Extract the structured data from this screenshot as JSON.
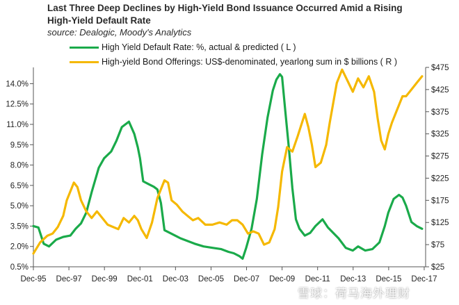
{
  "chart_data": {
    "type": "line",
    "title_line1": "Last Three Deep Declines by High-Yield Bond Issuance Occurred Amid a Rising",
    "title_line2": "High-Yield Default Rate",
    "source": "source: Dealogic, Moody's Analytics",
    "x_tick_labels": [
      "Dec-95",
      "Dec-97",
      "Dec-99",
      "Dec-01",
      "Dec-03",
      "Dec-05",
      "Dec-07",
      "Dec-09",
      "Dec-11",
      "Dec-13",
      "Dec-15",
      "Dec-17"
    ],
    "x_range": [
      1995.92,
      2018.0
    ],
    "left_axis": {
      "ticks": [
        0.5,
        2.0,
        3.5,
        5.0,
        6.5,
        8.0,
        9.5,
        11.0,
        12.5,
        14.0
      ],
      "tick_labels": [
        "0.5%",
        "2.0%",
        "3.5%",
        "5.0%",
        "6.5%",
        "8.0%",
        "9.5%",
        "11.0%",
        "12.5%",
        "14.0%"
      ],
      "range": [
        0.5,
        15.2
      ]
    },
    "right_axis": {
      "ticks": [
        25,
        75,
        125,
        175,
        225,
        275,
        325,
        375,
        425,
        475
      ],
      "tick_labels": [
        "$25",
        "$75",
        "$125",
        "$175",
        "$225",
        "$275",
        "$325",
        "$375",
        "$425",
        "$475"
      ],
      "range": [
        25,
        475
      ]
    },
    "series": [
      {
        "name": "High Yield Default Rate: %, actual & predicted ( L )",
        "axis": "left",
        "color": "#1aaa4a",
        "x": [
          1995.92,
          1996.2,
          1996.5,
          1996.8,
          1997.2,
          1997.6,
          1998.0,
          1998.3,
          1998.6,
          1998.9,
          1999.2,
          1999.6,
          1999.9,
          2000.3,
          2000.6,
          2000.9,
          2001.3,
          2001.6,
          2001.8,
          2001.92,
          2002.1,
          2002.4,
          2002.7,
          2002.9,
          2003.1,
          2003.3,
          2003.6,
          2003.9,
          2004.2,
          2004.6,
          2005.0,
          2005.5,
          2006.0,
          2006.5,
          2006.9,
          2007.2,
          2007.5,
          2007.7,
          2007.9,
          2008.2,
          2008.5,
          2008.8,
          2009.1,
          2009.4,
          2009.6,
          2009.8,
          2009.92,
          2010.1,
          2010.3,
          2010.5,
          2010.7,
          2010.9,
          2011.2,
          2011.5,
          2011.8,
          2012.2,
          2012.5,
          2012.8,
          2013.1,
          2013.5,
          2013.9,
          2014.2,
          2014.6,
          2015.0,
          2015.4,
          2015.7,
          2015.9,
          2016.2,
          2016.5,
          2016.7,
          2016.9,
          2017.2,
          2017.5,
          2017.8
        ],
        "values": [
          3.5,
          3.4,
          2.2,
          2.0,
          2.5,
          2.7,
          2.8,
          3.3,
          3.7,
          4.5,
          6.0,
          7.8,
          8.5,
          9.0,
          9.8,
          10.8,
          11.2,
          10.3,
          9.3,
          8.5,
          6.8,
          6.6,
          6.4,
          6.2,
          5.2,
          3.2,
          3.0,
          2.8,
          2.6,
          2.4,
          2.2,
          2.0,
          1.9,
          1.8,
          1.6,
          1.5,
          1.3,
          1.1,
          1.9,
          3.3,
          5.5,
          8.8,
          11.5,
          13.5,
          14.3,
          14.7,
          14.5,
          12.0,
          9.3,
          6.3,
          4.0,
          3.3,
          2.8,
          3.0,
          3.5,
          4.0,
          3.4,
          3.0,
          2.6,
          1.9,
          1.7,
          2.0,
          1.7,
          1.8,
          2.3,
          3.5,
          4.5,
          5.5,
          5.8,
          5.6,
          5.0,
          3.8,
          3.5,
          3.3
        ]
      },
      {
        "name": "High-yield Bond Offerings: US$-denominated, yearlong sum in $ billions ( R )",
        "axis": "right",
        "color": "#f5b800",
        "x": [
          1995.92,
          1996.3,
          1996.7,
          1997.0,
          1997.3,
          1997.6,
          1997.8,
          1998.0,
          1998.2,
          1998.4,
          1998.6,
          1998.9,
          1999.2,
          1999.5,
          1999.8,
          2000.1,
          2000.4,
          2000.7,
          2001.0,
          2001.3,
          2001.6,
          2001.8,
          2002.0,
          2002.3,
          2002.6,
          2002.9,
          2003.1,
          2003.3,
          2003.5,
          2003.7,
          2004.0,
          2004.3,
          2004.6,
          2004.9,
          2005.2,
          2005.6,
          2006.0,
          2006.4,
          2006.8,
          2007.1,
          2007.4,
          2007.7,
          2008.0,
          2008.3,
          2008.6,
          2008.9,
          2009.2,
          2009.5,
          2009.7,
          2009.92,
          2010.2,
          2010.5,
          2010.8,
          2011.0,
          2011.2,
          2011.4,
          2011.6,
          2011.8,
          2012.1,
          2012.4,
          2012.6,
          2012.8,
          2013.0,
          2013.3,
          2013.6,
          2013.9,
          2014.2,
          2014.5,
          2014.8,
          2015.1,
          2015.3,
          2015.5,
          2015.7,
          2015.9,
          2016.1,
          2016.4,
          2016.7,
          2016.9,
          2017.2,
          2017.5,
          2017.8
        ],
        "values": [
          55,
          80,
          95,
          100,
          115,
          140,
          175,
          195,
          215,
          205,
          175,
          150,
          135,
          150,
          135,
          120,
          115,
          110,
          135,
          125,
          140,
          130,
          110,
          90,
          125,
          180,
          200,
          220,
          215,
          175,
          165,
          150,
          140,
          130,
          135,
          120,
          120,
          125,
          120,
          130,
          130,
          120,
          100,
          105,
          100,
          75,
          80,
          110,
          160,
          240,
          295,
          285,
          320,
          345,
          370,
          340,
          300,
          250,
          260,
          300,
          350,
          395,
          440,
          470,
          445,
          420,
          450,
          430,
          455,
          420,
          360,
          310,
          290,
          325,
          350,
          380,
          410,
          410,
          425,
          440,
          455
        ]
      }
    ],
    "watermark": "雪球：荷马海外理财"
  }
}
